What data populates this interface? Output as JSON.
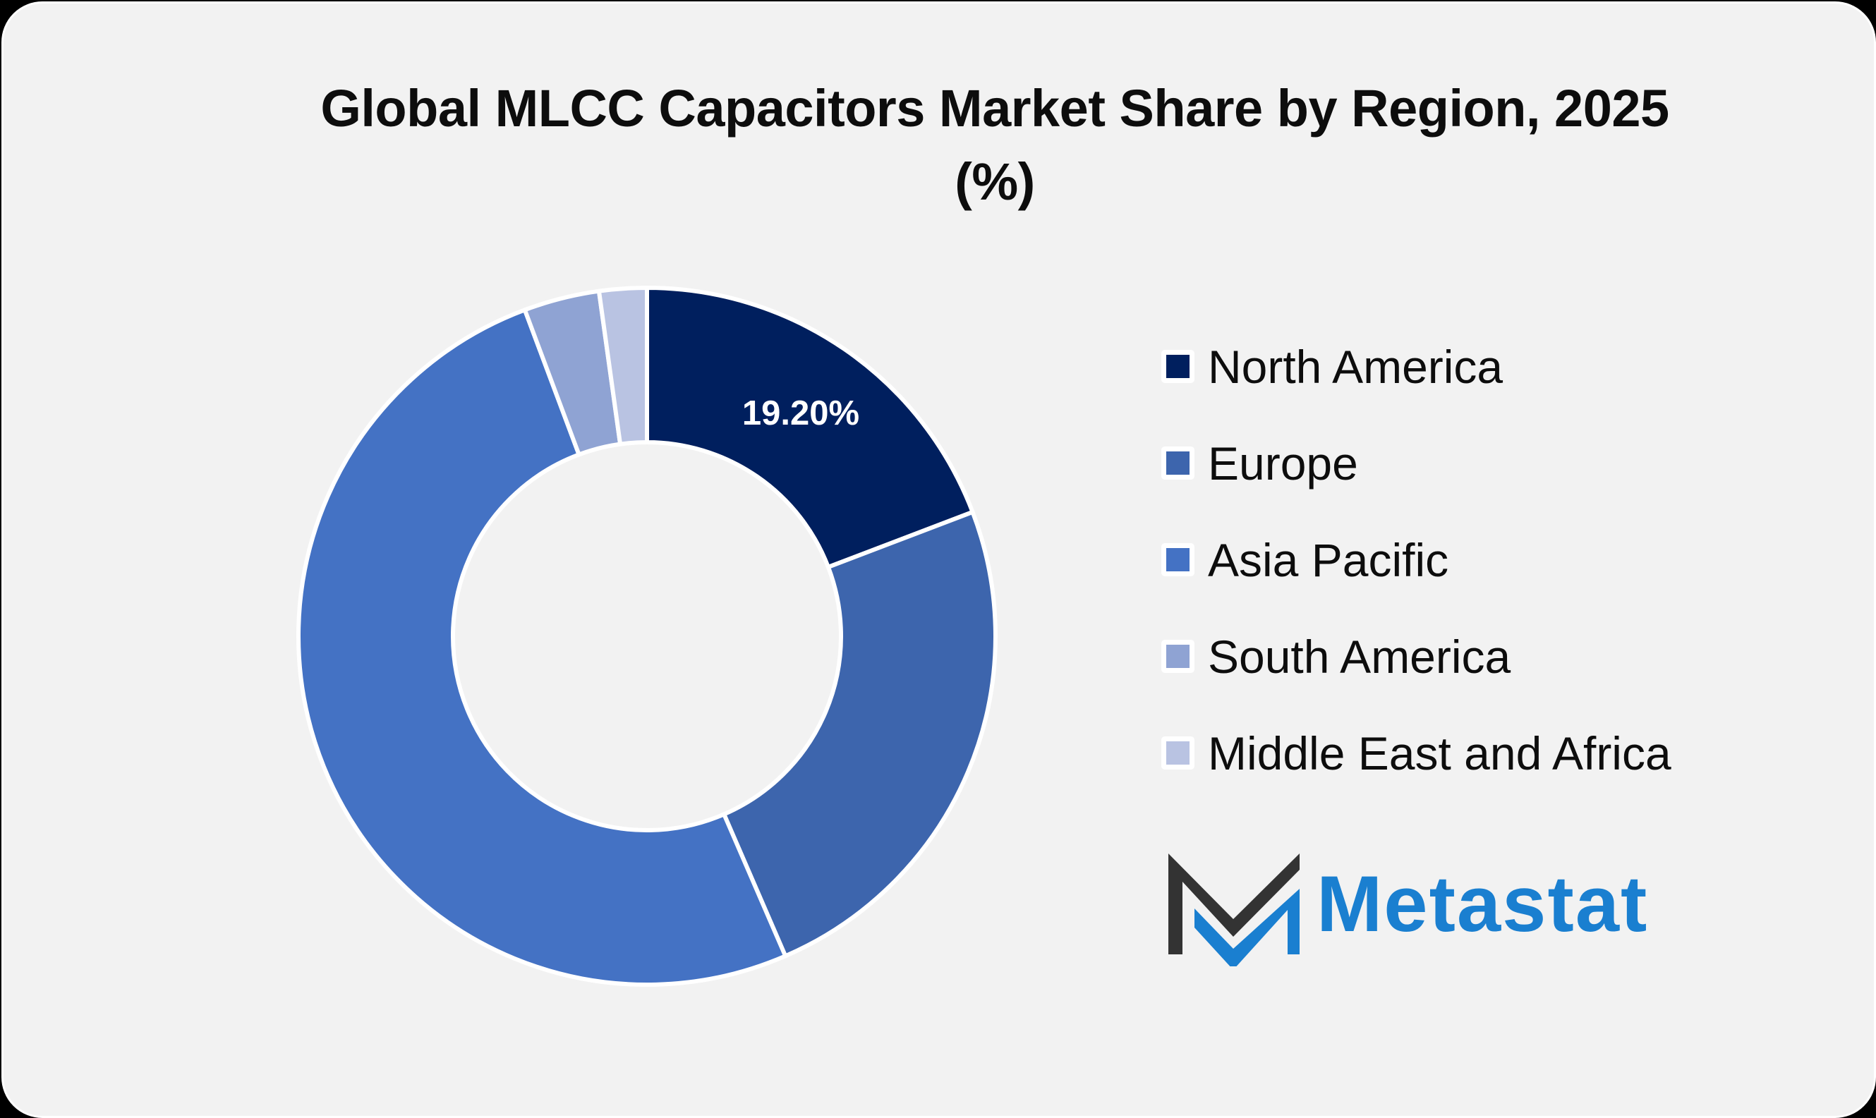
{
  "chart_data": {
    "type": "pie",
    "subtype": "donut",
    "title": "Global MLCC Capacitors Market Share by Region, 2025 (%)",
    "categories": [
      "North America",
      "Europe",
      "Asia Pacific",
      "South America",
      "Middle East and Africa"
    ],
    "values": [
      19.2,
      24.3,
      50.8,
      3.5,
      2.2
    ],
    "colors": [
      "#001f5e",
      "#3d65ad",
      "#4472c4",
      "#8fa3d3",
      "#b9c3e2"
    ],
    "data_labels": [
      {
        "category": "North America",
        "text": "19.20%"
      }
    ],
    "legend_position": "right",
    "start_angle_deg": 0,
    "direction": "clockwise",
    "inner_radius_ratio": 0.557
  },
  "title": {
    "line1": "Global MLCC Capacitors Market Share by Region, 2025",
    "line2": "(%)"
  },
  "legend": {
    "items": [
      {
        "label": "North America",
        "color": "#001f5e"
      },
      {
        "label": "Europe",
        "color": "#3d65ad"
      },
      {
        "label": "Asia Pacific",
        "color": "#4472c4"
      },
      {
        "label": "South America",
        "color": "#8fa3d3"
      },
      {
        "label": "Middle East and Africa",
        "color": "#b9c3e2"
      }
    ]
  },
  "labels": {
    "north_america": "19.20%"
  },
  "brand": {
    "name": "Metastat",
    "dark_color": "#333333",
    "accent_color": "#1a7fd0"
  }
}
